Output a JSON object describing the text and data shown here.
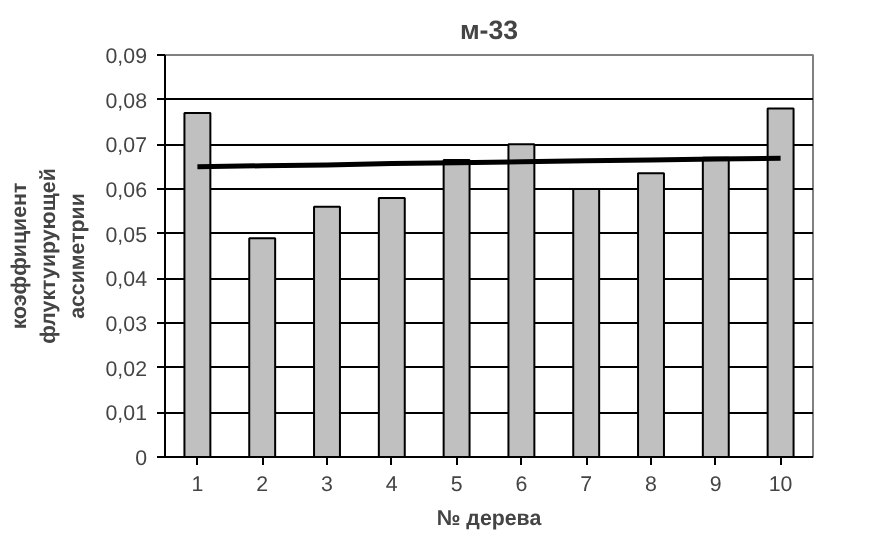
{
  "chart_data": {
    "type": "bar",
    "title": "м-33",
    "xlabel": "№ дерева",
    "ylabel": "коэффициент флуктуирующей ассиметрии",
    "categories": [
      "1",
      "2",
      "3",
      "4",
      "5",
      "6",
      "7",
      "8",
      "9",
      "10"
    ],
    "series": [
      {
        "color": "#c0c0c0",
        "values": [
          0.077,
          0.049,
          0.056,
          0.058,
          0.0665,
          0.07,
          0.06,
          0.0635,
          0.067,
          0.078
        ]
      },
      {
        "type": "line",
        "color": "#000000",
        "values": [
          0.065,
          0.0652,
          0.0654,
          0.0657,
          0.0659,
          0.0661,
          0.0663,
          0.0665,
          0.0667,
          0.0669
        ]
      }
    ],
    "ylim": [
      0,
      0.09
    ],
    "yticks": [
      0,
      {
        "value": 0.01,
        "label": "0,01"
      },
      {
        "value": 0.02,
        "label": "0,02"
      },
      {
        "value": 0.03,
        "label": "0,03"
      },
      {
        "value": 0.04,
        "label": "0,04"
      },
      {
        "value": 0.05,
        "label": "0,05"
      },
      {
        "value": 0.06,
        "label": "0,06"
      },
      {
        "value": 0.07,
        "label": "0,07"
      },
      {
        "value": 0.08,
        "label": "0,08"
      },
      {
        "value": 0.09,
        "label": "0,09"
      }
    ],
    "grid": "y",
    "marker": "none"
  }
}
